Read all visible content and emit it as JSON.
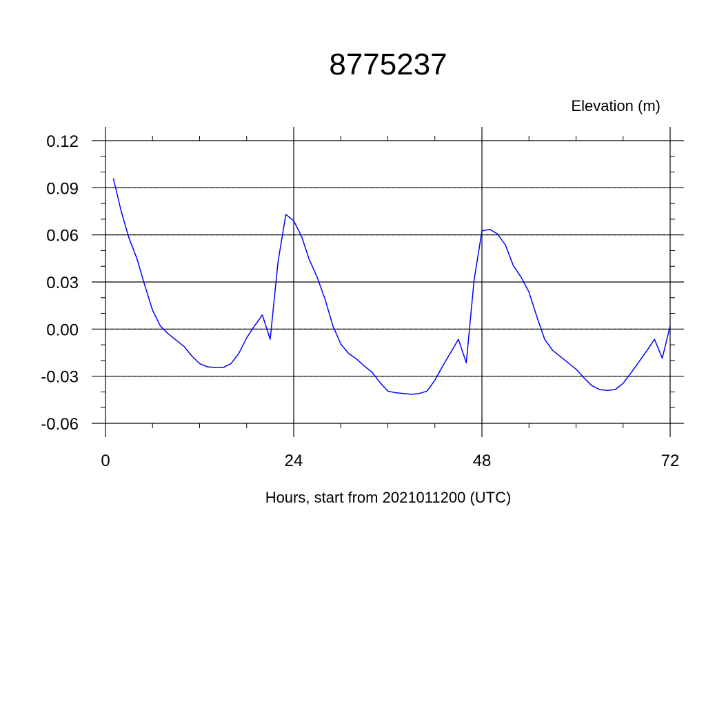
{
  "chart_data": {
    "type": "line",
    "title": "8775237",
    "ylabel": "Elevation (m)",
    "xlabel": "Hours, start from 2021011200 (UTC)",
    "xlim": [
      0,
      72
    ],
    "ylim": [
      -0.06,
      0.12
    ],
    "x_ticks": [
      0,
      24,
      48,
      72
    ],
    "x_tick_labels": [
      "0",
      "24",
      "48",
      "72"
    ],
    "y_ticks": [
      -0.06,
      -0.03,
      0.0,
      0.03,
      0.06,
      0.09,
      0.12
    ],
    "y_tick_labels": [
      "-0.06",
      "-0.03",
      "0.00",
      "0.03",
      "0.06",
      "0.09",
      "0.12"
    ],
    "grid": true,
    "series_color": "#0000ff",
    "series": [
      {
        "x": [
          1,
          2,
          3,
          4,
          5,
          6,
          7,
          8,
          9,
          10,
          11,
          12,
          13,
          14,
          15,
          16,
          17,
          18,
          19,
          20,
          21,
          22,
          23,
          24,
          25,
          26,
          27,
          28,
          29,
          30,
          31,
          32,
          33,
          34,
          35,
          36,
          37,
          38,
          39,
          40,
          41,
          42,
          43,
          44,
          45,
          46,
          47,
          48,
          49,
          50,
          51,
          52,
          53,
          54,
          55,
          56,
          57,
          58,
          59,
          60,
          61,
          62,
          63,
          64,
          65,
          66,
          67,
          68,
          69,
          70,
          71,
          72
        ],
        "y": [
          0.096,
          0.075,
          0.058,
          0.045,
          0.028,
          0.012,
          0.002,
          -0.003,
          -0.007,
          -0.011,
          -0.017,
          -0.022,
          -0.024,
          -0.0245,
          -0.0245,
          -0.022,
          -0.0155,
          -0.0055,
          0.002,
          0.009,
          -0.0065,
          0.043,
          0.073,
          0.069,
          0.059,
          0.044,
          0.033,
          0.019,
          0.002,
          -0.0095,
          -0.0155,
          -0.019,
          -0.0235,
          -0.0275,
          -0.034,
          -0.0395,
          -0.0405,
          -0.041,
          -0.0415,
          -0.041,
          -0.0395,
          -0.0325,
          -0.0235,
          -0.015,
          -0.0065,
          -0.0215,
          0.031,
          0.0625,
          0.0635,
          0.0605,
          0.0535,
          0.0405,
          0.033,
          0.0235,
          0.008,
          -0.0065,
          -0.0135,
          -0.0175,
          -0.0215,
          -0.0255,
          -0.031,
          -0.036,
          -0.0385,
          -0.039,
          -0.0385,
          -0.0345,
          -0.028,
          -0.021,
          -0.014,
          -0.0065,
          -0.0185,
          0.002
        ]
      }
    ]
  }
}
